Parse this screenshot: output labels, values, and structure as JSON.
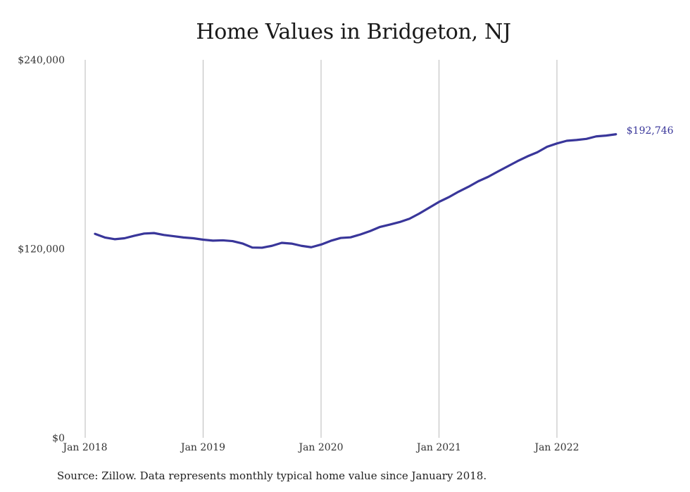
{
  "chart_data": {
    "type": "line",
    "title": "Home Values in Bridgeton, NJ",
    "source": "Source: Zillow. Data represents monthly typical home value since January 2018.",
    "x_ticks": [
      "Jan 2018",
      "Jan 2019",
      "Jan 2020",
      "Jan 2021",
      "Jan 2022"
    ],
    "y_ticks": [
      "$0",
      "$120,000",
      "$240,000"
    ],
    "ylim": [
      0,
      240000
    ],
    "xlim": [
      "2018-01",
      "2022-12"
    ],
    "grid": "vertical lines at each January",
    "line_color": "#39369a",
    "end_label": "$192,746",
    "series": [
      {
        "x": [
          "2018-02",
          "2018-03",
          "2018-04",
          "2018-05",
          "2018-06",
          "2018-07",
          "2018-08",
          "2018-09",
          "2018-10",
          "2018-11",
          "2018-12",
          "2019-01",
          "2019-02",
          "2019-03",
          "2019-04",
          "2019-05",
          "2019-06",
          "2019-07",
          "2019-08",
          "2019-09",
          "2019-10",
          "2019-11",
          "2019-12",
          "2020-01",
          "2020-02",
          "2020-03",
          "2020-04",
          "2020-05",
          "2020-06",
          "2020-07",
          "2020-08",
          "2020-09",
          "2020-10",
          "2020-11",
          "2020-12",
          "2021-01",
          "2021-02",
          "2021-03",
          "2021-04",
          "2021-05",
          "2021-06",
          "2021-07",
          "2021-08",
          "2021-09",
          "2021-10",
          "2021-11",
          "2021-12",
          "2022-01",
          "2022-02",
          "2022-03",
          "2022-04",
          "2022-05",
          "2022-06",
          "2022-07"
        ],
        "values": [
          129500,
          127200,
          126100,
          126700,
          128300,
          129700,
          130000,
          128800,
          128000,
          127200,
          126700,
          125800,
          125200,
          125400,
          124900,
          123400,
          120800,
          120700,
          121900,
          123800,
          123300,
          121900,
          121000,
          122700,
          125100,
          126900,
          127300,
          129100,
          131300,
          133900,
          135400,
          137000,
          139100,
          142400,
          146100,
          149800,
          152800,
          156300,
          159400,
          162900,
          165700,
          169100,
          172400,
          175700,
          178700,
          181300,
          184800,
          186900,
          188600,
          189100,
          189800,
          191400,
          191900,
          192746
        ]
      }
    ]
  }
}
